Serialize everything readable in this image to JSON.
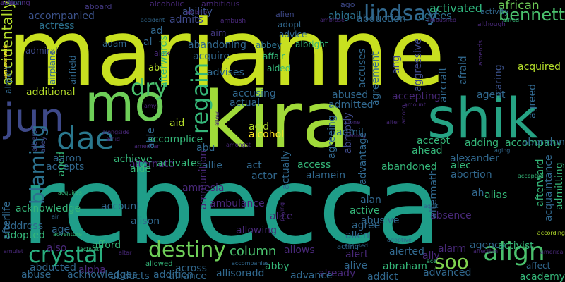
{
  "colors": {
    "background": "#000000",
    "palette": [
      "#440154",
      "#482878",
      "#3e4989",
      "#31688e",
      "#26828e",
      "#1f9e89",
      "#35b779",
      "#6ece58",
      "#b5de2b",
      "#fde725"
    ]
  },
  "words": [
    {
      "text": "marianne",
      "color": "#c8e020",
      "vertical": false
    },
    {
      "text": "rebecca",
      "color": "#1f9e89",
      "vertical": false
    },
    {
      "text": "kira",
      "color": "#a0da39",
      "vertical": false
    },
    {
      "text": "mo",
      "color": "#6ece58",
      "vertical": false
    },
    {
      "text": "shik",
      "color": "#26a384",
      "vertical": false
    },
    {
      "text": "jun",
      "color": "#3e4989",
      "vertical": false
    },
    {
      "text": "dae",
      "color": "#2a788e",
      "vertical": false
    },
    {
      "text": "lindsay",
      "color": "#31688e",
      "vertical": false
    },
    {
      "text": "bennett",
      "color": "#4ac16d",
      "vertical": false
    },
    {
      "text": "dry",
      "color": "#4ac16d",
      "vertical": false
    },
    {
      "text": "regain",
      "color": "#35b779",
      "vertical": true
    },
    {
      "text": "crystal",
      "color": "#29af7f",
      "vertical": false
    },
    {
      "text": "destiny",
      "color": "#6ece58",
      "vertical": false
    },
    {
      "text": "align",
      "color": "#4ac16d",
      "vertical": false
    },
    {
      "text": "blaming",
      "color": "#2c718e",
      "vertical": true
    },
    {
      "text": "soo",
      "color": "#7fd34e",
      "vertical": false
    },
    {
      "text": "column",
      "color": "#4ac16d",
      "vertical": false
    },
    {
      "text": "african",
      "color": "#6ece58",
      "vertical": false
    },
    {
      "text": "activated",
      "color": "#2fb47c",
      "vertical": false
    },
    {
      "text": "accompanied",
      "color": "#3b528b",
      "vertical": false
    },
    {
      "text": "actress",
      "color": "#2c718e",
      "vertical": false
    },
    {
      "text": "admits",
      "color": "#3e4989",
      "vertical": false
    },
    {
      "text": "abigail",
      "color": "#2c718e",
      "vertical": false
    },
    {
      "text": "abduction",
      "color": "#31688e",
      "vertical": false
    },
    {
      "text": "ability",
      "color": "#3b528b",
      "vertical": false
    },
    {
      "text": "agrees",
      "color": "#2c718e",
      "vertical": false
    },
    {
      "text": "activity",
      "color": "#31688e",
      "vertical": false
    },
    {
      "text": "aboard",
      "color": "#443983",
      "vertical": false
    },
    {
      "text": "alcoholic",
      "color": "#482878",
      "vertical": false
    },
    {
      "text": "ambitious",
      "color": "#482878",
      "vertical": false
    },
    {
      "text": "ambition",
      "color": "#482878",
      "vertical": false
    },
    {
      "text": "alien",
      "color": "#3e4989",
      "vertical": false
    },
    {
      "text": "ago",
      "color": "#3e4989",
      "vertical": false
    },
    {
      "text": "adopt",
      "color": "#31688e",
      "vertical": false
    },
    {
      "text": "advice",
      "color": "#31688e",
      "vertical": false
    },
    {
      "text": "abbey",
      "color": "#2c718e",
      "vertical": false
    },
    {
      "text": "albright",
      "color": "#35b779",
      "vertical": false
    },
    {
      "text": "affair",
      "color": "#35b779",
      "vertical": false
    },
    {
      "text": "aided",
      "color": "#35b779",
      "vertical": false
    },
    {
      "text": "ambush",
      "color": "#482878",
      "vertical": false
    },
    {
      "text": "ambrose",
      "color": "#482878",
      "vertical": false
    },
    {
      "text": "ambushed",
      "color": "#482878",
      "vertical": false
    },
    {
      "text": "although",
      "color": "#482878",
      "vertical": false
    },
    {
      "text": "amends",
      "color": "#482878",
      "vertical": true
    },
    {
      "text": "accidentally",
      "color": "#b5de2b",
      "vertical": true
    },
    {
      "text": "aim",
      "color": "#443983",
      "vertical": false
    },
    {
      "text": "ad",
      "color": "#31688e",
      "vertical": false
    },
    {
      "text": "al",
      "color": "#31688e",
      "vertical": false
    },
    {
      "text": "adam",
      "color": "#31688e",
      "vertical": false
    },
    {
      "text": "alex",
      "color": "#482878",
      "vertical": false
    },
    {
      "text": "abe",
      "color": "#b5de2b",
      "vertical": false
    },
    {
      "text": "abandoning",
      "color": "#31688e",
      "vertical": false
    },
    {
      "text": "acquire",
      "color": "#31688e",
      "vertical": false
    },
    {
      "text": "advises",
      "color": "#31688e",
      "vertical": false
    },
    {
      "text": "accuses",
      "color": "#31688e",
      "vertical": true
    },
    {
      "text": "agreement",
      "color": "#31688e",
      "vertical": true
    },
    {
      "text": "ang",
      "color": "#3e4989",
      "vertical": true
    },
    {
      "text": "aggressive",
      "color": "#3e4989",
      "vertical": true
    },
    {
      "text": "aircraft",
      "color": "#31688e",
      "vertical": true
    },
    {
      "text": "afraid",
      "color": "#31688e",
      "vertical": true
    },
    {
      "text": "caring",
      "color": "#3b528b",
      "vertical": true
    },
    {
      "text": "acquired",
      "color": "#b5de2b",
      "vertical": false
    },
    {
      "text": "admiral",
      "color": "#3e4989",
      "vertical": false
    },
    {
      "text": "airport",
      "color": "#31688e",
      "vertical": true
    },
    {
      "text": "airplane",
      "color": "#31688e",
      "vertical": true
    },
    {
      "text": "airfield",
      "color": "#31688e",
      "vertical": true
    },
    {
      "text": "amusement",
      "color": "#fde725",
      "vertical": true
    },
    {
      "text": "additional",
      "color": "#b5de2b",
      "vertical": false
    },
    {
      "text": "accusing",
      "color": "#31688e",
      "vertical": false
    },
    {
      "text": "actual",
      "color": "#31688e",
      "vertical": false
    },
    {
      "text": "abused",
      "color": "#31688e",
      "vertical": false
    },
    {
      "text": "admitted",
      "color": "#31688e",
      "vertical": false
    },
    {
      "text": "accepting",
      "color": "#482878",
      "vertical": false
    },
    {
      "text": "agent",
      "color": "#31688e",
      "vertical": false
    },
    {
      "text": "agreed",
      "color": "#31688e",
      "vertical": true
    },
    {
      "text": "amy",
      "color": "#482878",
      "vertical": false
    },
    {
      "text": "amount",
      "color": "#482878",
      "vertical": false
    },
    {
      "text": "afterwards",
      "color": "#35b779",
      "vertical": true
    },
    {
      "text": "aid",
      "color": "#b5de2b",
      "vertical": false
    },
    {
      "text": "acid",
      "color": "#b5de2b",
      "vertical": false
    },
    {
      "text": "alcohol",
      "color": "#fde725",
      "vertical": false
    },
    {
      "text": "allow",
      "color": "#482878",
      "vertical": true
    },
    {
      "text": "alter",
      "color": "#482878",
      "vertical": false
    },
    {
      "text": "alone",
      "color": "#482878",
      "vertical": false
    },
    {
      "text": "along",
      "color": "#482878",
      "vertical": false
    },
    {
      "text": "among",
      "color": "#482878",
      "vertical": true
    },
    {
      "text": "accept",
      "color": "#35b779",
      "vertical": false
    },
    {
      "text": "ahead",
      "color": "#35b779",
      "vertical": false
    },
    {
      "text": "admit",
      "color": "#31688e",
      "vertical": false
    },
    {
      "text": "accomplice",
      "color": "#35b779",
      "vertical": false
    },
    {
      "text": "albert",
      "color": "#3e4989",
      "vertical": true
    },
    {
      "text": "alley",
      "color": "#3e4989",
      "vertical": true
    },
    {
      "text": "alongside",
      "color": "#482878",
      "vertical": false
    },
    {
      "text": "amid",
      "color": "#482878",
      "vertical": false
    },
    {
      "text": "american",
      "color": "#482878",
      "vertical": false
    },
    {
      "text": "amongst",
      "color": "#482878",
      "vertical": false
    },
    {
      "text": "agreeing",
      "color": "#31688e",
      "vertical": true
    },
    {
      "text": "abruptly",
      "color": "#3e4989",
      "vertical": true
    },
    {
      "text": "adding",
      "color": "#35b779",
      "vertical": false
    },
    {
      "text": "accompany",
      "color": "#35b779",
      "vertical": false
    },
    {
      "text": "abandon",
      "color": "#31688e",
      "vertical": false
    },
    {
      "text": "aging",
      "color": "#31688e",
      "vertical": false
    },
    {
      "text": "aaron",
      "color": "#31688e",
      "vertical": false
    },
    {
      "text": "alternate",
      "color": "#482878",
      "vertical": false
    },
    {
      "text": "achieve",
      "color": "#35b779",
      "vertical": false
    },
    {
      "text": "able",
      "color": "#31688e",
      "vertical": true
    },
    {
      "text": "abu",
      "color": "#31688e",
      "vertical": false
    },
    {
      "text": "accepts",
      "color": "#31688e",
      "vertical": false
    },
    {
      "text": "aide",
      "color": "#35b779",
      "vertical": false
    },
    {
      "text": "activates",
      "color": "#35b779",
      "vertical": false
    },
    {
      "text": "allie",
      "color": "#31688e",
      "vertical": false
    },
    {
      "text": "act",
      "color": "#31688e",
      "vertical": false
    },
    {
      "text": "actor",
      "color": "#31688e",
      "vertical": false
    },
    {
      "text": "access",
      "color": "#35b779",
      "vertical": false
    },
    {
      "text": "alamein",
      "color": "#31688e",
      "vertical": false
    },
    {
      "text": "abandoned",
      "color": "#35b779",
      "vertical": false
    },
    {
      "text": "alexander",
      "color": "#31688e",
      "vertical": false
    },
    {
      "text": "alec",
      "color": "#35b779",
      "vertical": false
    },
    {
      "text": "abortion",
      "color": "#31688e",
      "vertical": false
    },
    {
      "text": "accepted",
      "color": "#35b779",
      "vertical": false
    },
    {
      "text": "acknowledge",
      "color": "#35b779",
      "vertical": false
    },
    {
      "text": "account",
      "color": "#31688e",
      "vertical": false
    },
    {
      "text": "amnesia",
      "color": "#482878",
      "vertical": false
    },
    {
      "text": "afterward",
      "color": "#35b779",
      "vertical": true
    },
    {
      "text": "admitting",
      "color": "#35b779",
      "vertical": true
    },
    {
      "text": "aged",
      "color": "#35b779",
      "vertical": true
    },
    {
      "text": "actually",
      "color": "#31688e",
      "vertical": true
    },
    {
      "text": "advantage",
      "color": "#31688e",
      "vertical": true
    },
    {
      "text": "alan",
      "color": "#31688e",
      "vertical": false
    },
    {
      "text": "ah",
      "color": "#31688e",
      "vertical": false
    },
    {
      "text": "acquires",
      "color": "#35b779",
      "vertical": false
    },
    {
      "text": "alias",
      "color": "#35b779",
      "vertical": false
    },
    {
      "text": "adult",
      "color": "#31688e",
      "vertical": false
    },
    {
      "text": "ambulance",
      "color": "#482878",
      "vertical": false
    },
    {
      "text": "active",
      "color": "#35b779",
      "vertical": false
    },
    {
      "text": "absence",
      "color": "#482878",
      "vertical": false
    },
    {
      "text": "allen",
      "color": "#31688e",
      "vertical": false
    },
    {
      "text": "accused",
      "color": "#31688e",
      "vertical": false
    },
    {
      "text": "abusive",
      "color": "#31688e",
      "vertical": false
    },
    {
      "text": "acquaintance",
      "color": "#31688e",
      "vertical": true
    },
    {
      "text": "ammunition",
      "color": "#482878",
      "vertical": true
    },
    {
      "text": "address",
      "color": "#31688e",
      "vertical": false
    },
    {
      "text": "air",
      "color": "#31688e",
      "vertical": false
    },
    {
      "text": "age",
      "color": "#31688e",
      "vertical": false
    },
    {
      "text": "afford",
      "color": "#35b779",
      "vertical": false
    },
    {
      "text": "alice",
      "color": "#482878",
      "vertical": false
    },
    {
      "text": "agree",
      "color": "#31688e",
      "vertical": false
    },
    {
      "text": "aftermath",
      "color": "#31688e",
      "vertical": true
    },
    {
      "text": "adopted",
      "color": "#35b779",
      "vertical": false
    },
    {
      "text": "adventure",
      "color": "#35b779",
      "vertical": false
    },
    {
      "text": "activate",
      "color": "#35b779",
      "vertical": false
    },
    {
      "text": "alison",
      "color": "#31688e",
      "vertical": false
    },
    {
      "text": "allowing",
      "color": "#482878",
      "vertical": false
    },
    {
      "text": "paying",
      "color": "#482878",
      "vertical": true
    },
    {
      "text": "according",
      "color": "#b5de2b",
      "vertical": false
    },
    {
      "text": "afterlife",
      "color": "#31688e",
      "vertical": true
    },
    {
      "text": "also",
      "color": "#482878",
      "vertical": false
    },
    {
      "text": "allows",
      "color": "#482878",
      "vertical": false
    },
    {
      "text": "agency",
      "color": "#31688e",
      "vertical": false
    },
    {
      "text": "activist",
      "color": "#35b779",
      "vertical": false
    },
    {
      "text": "adoptive",
      "color": "#31688e",
      "vertical": false
    },
    {
      "text": "alarm",
      "color": "#482878",
      "vertical": false
    },
    {
      "text": "affection",
      "color": "#482878",
      "vertical": false
    },
    {
      "text": "america",
      "color": "#482878",
      "vertical": false
    },
    {
      "text": "acting",
      "color": "#31688e",
      "vertical": false
    },
    {
      "text": "amulet",
      "color": "#482878",
      "vertical": false
    },
    {
      "text": "altar",
      "color": "#482878",
      "vertical": false
    },
    {
      "text": "alerted",
      "color": "#31688e",
      "vertical": false
    },
    {
      "text": "ally",
      "color": "#482878",
      "vertical": false
    },
    {
      "text": "alert",
      "color": "#482878",
      "vertical": false
    },
    {
      "text": "ace",
      "color": "#35b779",
      "vertical": false
    },
    {
      "text": "affect",
      "color": "#31688e",
      "vertical": false
    },
    {
      "text": "abducted",
      "color": "#31688e",
      "vertical": false
    },
    {
      "text": "alpha",
      "color": "#482878",
      "vertical": false
    },
    {
      "text": "allowed",
      "color": "#35b779",
      "vertical": false
    },
    {
      "text": "across",
      "color": "#31688e",
      "vertical": false
    },
    {
      "text": "accompanies",
      "color": "#31688e",
      "vertical": false
    },
    {
      "text": "alive",
      "color": "#31688e",
      "vertical": false
    },
    {
      "text": "abraham",
      "color": "#35b779",
      "vertical": false
    },
    {
      "text": "already",
      "color": "#482878",
      "vertical": false
    },
    {
      "text": "advanced",
      "color": "#31688e",
      "vertical": false
    },
    {
      "text": "academy",
      "color": "#35b779",
      "vertical": false
    },
    {
      "text": "abuse",
      "color": "#31688e",
      "vertical": false
    },
    {
      "text": "acknowledges",
      "color": "#31688e",
      "vertical": false
    },
    {
      "text": "abducts",
      "color": "#31688e",
      "vertical": false
    },
    {
      "text": "addition",
      "color": "#31688e",
      "vertical": false
    },
    {
      "text": "alliance",
      "color": "#31688e",
      "vertical": false
    },
    {
      "text": "allison",
      "color": "#31688e",
      "vertical": false
    },
    {
      "text": "add",
      "color": "#31688e",
      "vertical": false
    },
    {
      "text": "advance",
      "color": "#31688e",
      "vertical": false
    },
    {
      "text": "abby",
      "color": "#35b779",
      "vertical": false
    },
    {
      "text": "addict",
      "color": "#31688e",
      "vertical": false
    },
    {
      "text": "alfred",
      "color": "#35b779",
      "vertical": false
    },
    {
      "text": "accident",
      "color": "#31688e",
      "vertical": false
    },
    {
      "text": "action",
      "color": "#31688e",
      "vertical": false
    },
    {
      "text": "amazing",
      "color": "#482878",
      "vertical": false
    },
    {
      "text": "ana",
      "color": "#482878",
      "vertical": false
    }
  ]
}
